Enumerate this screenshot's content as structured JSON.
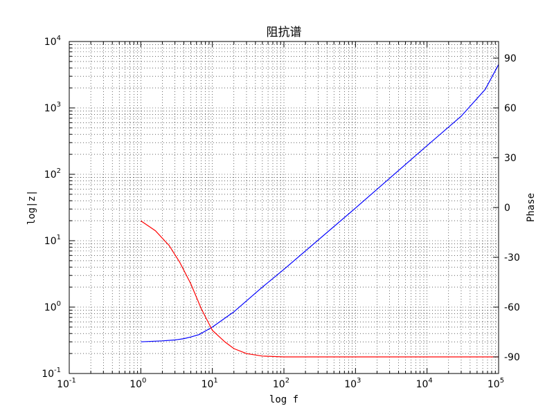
{
  "chart_data": {
    "type": "line",
    "title": "阻抗谱",
    "xlabel": "log f",
    "ylabel_left": "log|z|",
    "ylabel_right": "Phase",
    "x_scale": "log",
    "y_left_scale": "log",
    "xlim": [
      0.1,
      100000
    ],
    "ylim_left": [
      0.1,
      10000
    ],
    "ylim_right": [
      -100,
      100
    ],
    "grid": true,
    "x_ticks": [
      {
        "base": "10",
        "exp": "-1",
        "value": 0.1
      },
      {
        "base": "10",
        "exp": "0",
        "value": 1
      },
      {
        "base": "10",
        "exp": "1",
        "value": 10
      },
      {
        "base": "10",
        "exp": "2",
        "value": 100
      },
      {
        "base": "10",
        "exp": "3",
        "value": 1000
      },
      {
        "base": "10",
        "exp": "4",
        "value": 10000
      },
      {
        "base": "10",
        "exp": "5",
        "value": 100000
      }
    ],
    "y_left_ticks": [
      {
        "base": "10",
        "exp": "-1",
        "value": 0.1
      },
      {
        "base": "10",
        "exp": "0",
        "value": 1
      },
      {
        "base": "10",
        "exp": "1",
        "value": 10
      },
      {
        "base": "10",
        "exp": "2",
        "value": 100
      },
      {
        "base": "10",
        "exp": "3",
        "value": 1000
      },
      {
        "base": "10",
        "exp": "4",
        "value": 10000
      }
    ],
    "y_right_ticks": [
      {
        "label": "-90",
        "value": -90
      },
      {
        "label": "-60",
        "value": -60
      },
      {
        "label": "-30",
        "value": -30
      },
      {
        "label": "0",
        "value": 0
      },
      {
        "label": "30",
        "value": 30
      },
      {
        "label": "60",
        "value": 60
      },
      {
        "label": "90",
        "value": 90
      }
    ],
    "series": [
      {
        "axis": "left",
        "color": "#0000ff",
        "x": [
          1,
          2,
          3,
          4,
          5,
          6.5,
          10,
          20,
          50,
          100,
          1000,
          10000,
          30000,
          65000,
          100000
        ],
        "y": [
          0.3,
          0.31,
          0.32,
          0.335,
          0.355,
          0.385,
          0.5,
          0.85,
          2.0,
          3.7,
          31,
          270,
          750,
          1900,
          4500
        ]
      },
      {
        "axis": "right",
        "color": "#ff0000",
        "x": [
          1,
          1.6,
          2.5,
          3.5,
          5,
          7,
          10,
          15,
          20,
          30,
          50,
          100,
          300,
          1000,
          3000,
          10000,
          30000,
          70000,
          100000
        ],
        "y": [
          -8,
          -14,
          -23,
          -33,
          -46,
          -61,
          -74,
          -81,
          -85,
          -88,
          -89.5,
          -90,
          -90,
          -90,
          -90,
          -90,
          -90,
          -90,
          -90
        ]
      }
    ]
  }
}
